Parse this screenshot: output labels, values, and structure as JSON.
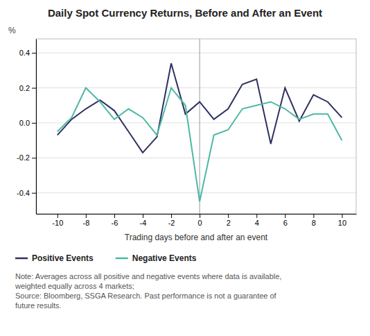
{
  "chart_data": {
    "type": "line",
    "title": "Daily Spot Currency Returns, Before and After an Event",
    "xlabel": "Trading days before and after an event",
    "ylabel": "%",
    "note": "Note: Averages across all positive and negative events where data is available,\nweighted equally across 4 markets;\nSource: Bloomberg, SSGA Research. Past performance is not a guarantee of\nfuture results.",
    "x": [
      -10,
      -9,
      -8,
      -7,
      -6,
      -5,
      -4,
      -3,
      -2,
      -1,
      0,
      1,
      2,
      3,
      4,
      5,
      6,
      7,
      8,
      9,
      10
    ],
    "series": [
      {
        "name": "Positive Events",
        "color": "#2e3060",
        "values": [
          -0.07,
          0.02,
          0.08,
          0.13,
          0.07,
          -0.05,
          -0.17,
          -0.08,
          0.34,
          0.05,
          0.12,
          0.02,
          0.08,
          0.22,
          0.25,
          -0.12,
          0.2,
          0.01,
          0.16,
          0.12,
          0.03
        ]
      },
      {
        "name": "Negative Events",
        "color": "#4db8a4",
        "values": [
          -0.05,
          0.03,
          0.2,
          0.12,
          0.02,
          0.08,
          0.03,
          -0.07,
          0.2,
          0.1,
          -0.45,
          -0.07,
          -0.04,
          0.08,
          0.1,
          0.12,
          0.08,
          0.02,
          0.05,
          0.05,
          -0.1
        ]
      }
    ],
    "vline_x": 0,
    "xlim": [
      -11.5,
      11
    ],
    "ylim": [
      -0.52,
      0.48
    ],
    "xticks": [
      -10,
      -8,
      -6,
      -4,
      -2,
      0,
      2,
      4,
      6,
      8,
      10
    ],
    "yticks": [
      -0.4,
      -0.2,
      {
        "value": 0,
        "label": "0.0"
      },
      0.2,
      0.4
    ],
    "grid": true,
    "legend": "bottom"
  }
}
